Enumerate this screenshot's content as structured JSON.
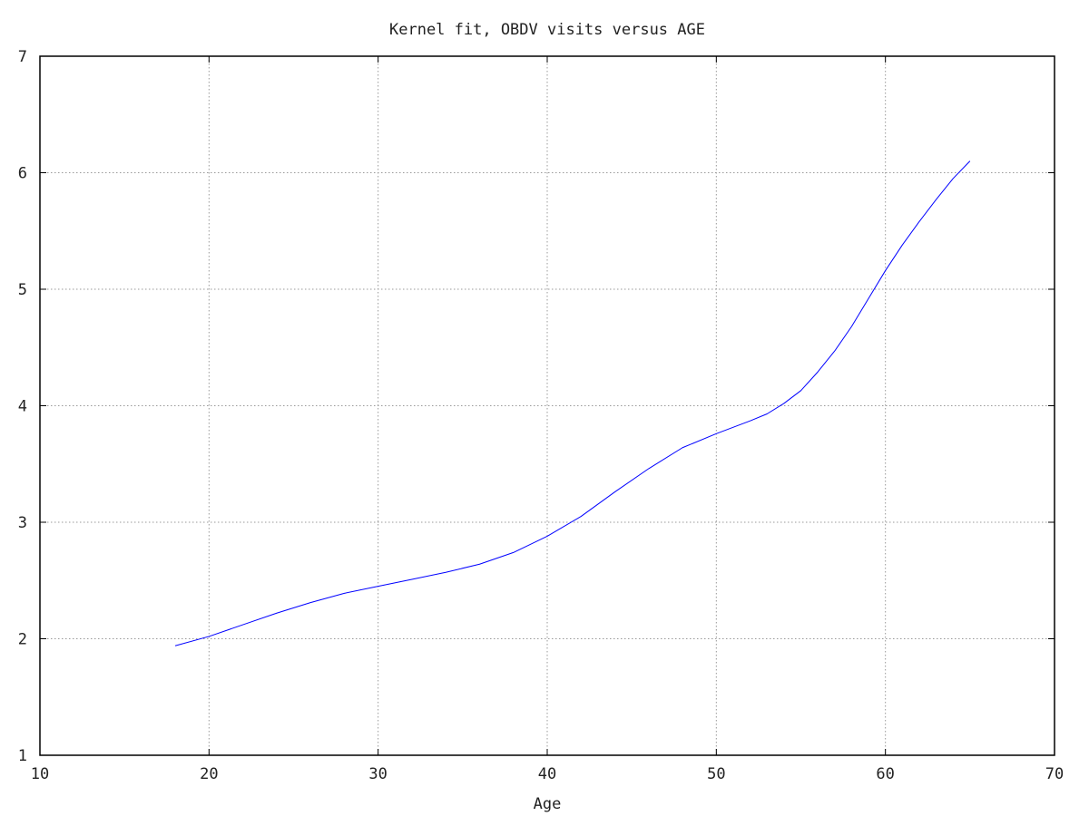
{
  "chart_data": {
    "type": "line",
    "title": "Kernel fit, OBDV visits versus AGE",
    "xlabel": "Age",
    "ylabel": "",
    "xlim": [
      10,
      70
    ],
    "ylim": [
      1,
      7
    ],
    "xticks": [
      10,
      20,
      30,
      40,
      50,
      60,
      70
    ],
    "yticks": [
      1,
      2,
      3,
      4,
      5,
      6,
      7
    ],
    "grid": true,
    "legend": "none",
    "series": [
      {
        "color": "#0000ff",
        "x": [
          18,
          20,
          22,
          24,
          26,
          28,
          30,
          32,
          34,
          36,
          38,
          40,
          42,
          44,
          46,
          48,
          50,
          52,
          53,
          54,
          55,
          56,
          57,
          58,
          59,
          60,
          61,
          62,
          63,
          64,
          65
        ],
        "y": [
          1.94,
          2.02,
          2.12,
          2.22,
          2.31,
          2.39,
          2.45,
          2.51,
          2.57,
          2.64,
          2.74,
          2.88,
          3.05,
          3.26,
          3.46,
          3.64,
          3.76,
          3.87,
          3.93,
          4.02,
          4.13,
          4.29,
          4.47,
          4.68,
          4.92,
          5.16,
          5.38,
          5.58,
          5.77,
          5.95,
          6.1
        ]
      }
    ]
  }
}
